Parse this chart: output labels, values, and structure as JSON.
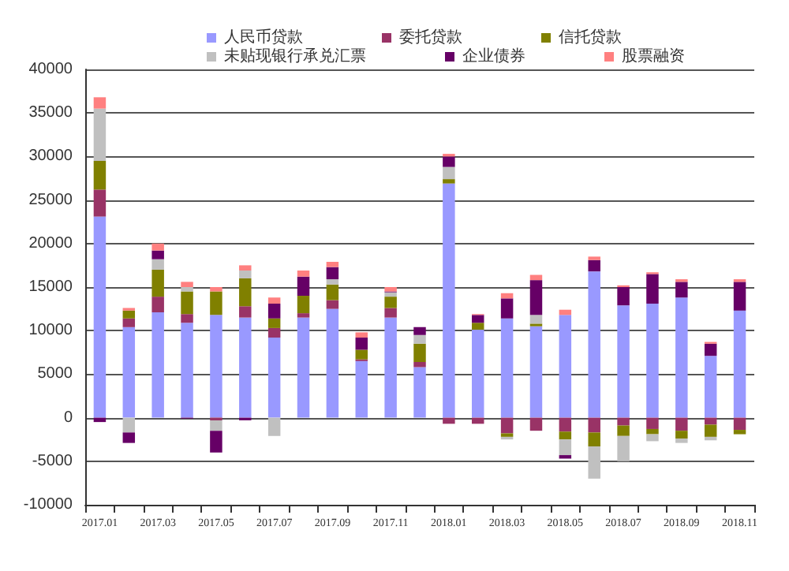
{
  "chart_data": {
    "type": "bar",
    "stacked": true,
    "legend": "top",
    "grid": "y",
    "categories": [
      "2017.01",
      null,
      "2017.03",
      null,
      "2017.05",
      null,
      "2017.07",
      null,
      "2017.09",
      null,
      "2017.11",
      null,
      "2018.01",
      null,
      "2018.03",
      null,
      "2018.05",
      null,
      "2018.07",
      null,
      "2018.09",
      null,
      "2018.11"
    ],
    "ylim": [
      -10000,
      40000
    ],
    "yticks": [
      -10000,
      -5000,
      0,
      5000,
      10000,
      15000,
      20000,
      25000,
      30000,
      35000,
      40000
    ],
    "series": [
      {
        "name": "人民币贷款",
        "color": "#9999ff",
        "values": [
          23100,
          10400,
          12100,
          10900,
          11800,
          11500,
          9200,
          11500,
          12500,
          6500,
          11500,
          5800,
          26900,
          10100,
          11400,
          10500,
          11800,
          16800,
          12900,
          13100,
          13800,
          7100,
          12300
        ]
      },
      {
        "name": "委托贷款",
        "color": "#993366",
        "values": [
          3100,
          1000,
          1800,
          1000,
          -300,
          1300,
          1100,
          500,
          1000,
          200,
          1100,
          600,
          -700,
          -700,
          -1800,
          -1500,
          -1600,
          -1700,
          -900,
          -1300,
          -1500,
          -800,
          -1400
        ]
      },
      {
        "name": "信托贷款",
        "color": "#808000",
        "values": [
          3300,
          900,
          3100,
          2600,
          2700,
          3200,
          1100,
          2000,
          1800,
          1100,
          1300,
          2100,
          500,
          800,
          -400,
          300,
          -900,
          -1600,
          -1200,
          -600,
          -900,
          -1400,
          -500
        ]
      },
      {
        "name": "未贴现银行承兑汇票",
        "color": "#c0c0c0",
        "values": [
          6000,
          -1700,
          1200,
          500,
          -1200,
          900,
          -2100,
          null,
          600,
          0,
          500,
          1000,
          1400,
          0,
          -300,
          1000,
          -1800,
          -3700,
          -2900,
          -800,
          -500,
          -400,
          null
        ]
      },
      {
        "name": "企业债券",
        "color": "#660066",
        "values": [
          -500,
          -1200,
          1000,
          -100,
          -2500,
          -300,
          1700,
          2200,
          1400,
          1400,
          100,
          900,
          1200,
          900,
          2300,
          4000,
          -400,
          1300,
          2100,
          3400,
          1800,
          1400,
          3300
        ]
      },
      {
        "name": "股票融资",
        "color": "#ff8080",
        "values": [
          1300,
          300,
          800,
          600,
          500,
          600,
          700,
          700,
          600,
          600,
          500,
          0,
          300,
          100,
          600,
          600,
          600,
          400,
          200,
          200,
          300,
          200,
          300
        ]
      }
    ]
  }
}
